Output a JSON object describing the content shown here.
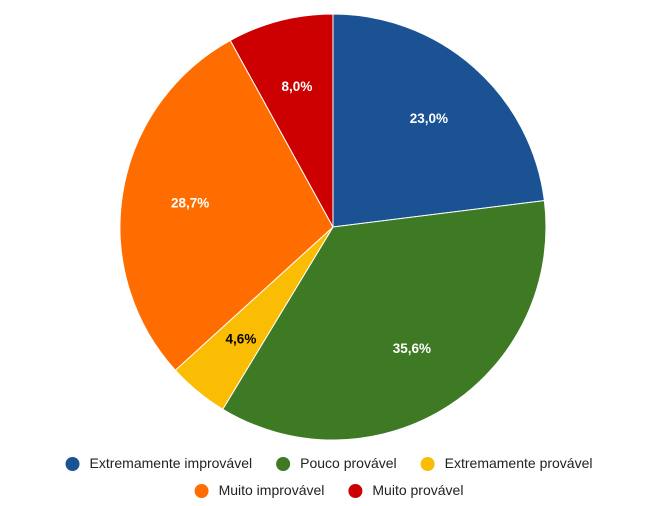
{
  "chart_data": {
    "type": "pie",
    "title": "",
    "slices": [
      {
        "label": "Extremamente improvável",
        "value": 23.0,
        "display": "23,0%",
        "color": "#1a5293",
        "label_color": "#ffffff"
      },
      {
        "label": "Pouco provável",
        "value": 35.6,
        "display": "35,6%",
        "color": "#3e7a24",
        "label_color": "#ffffff"
      },
      {
        "label": "Extremamente provável",
        "value": 4.6,
        "display": "4,6%",
        "color": "#fbbc04",
        "label_color": "#000000"
      },
      {
        "label": "Muito improvável",
        "value": 28.7,
        "display": "28,7%",
        "color": "#ff6d00",
        "label_color": "#ffffff"
      },
      {
        "label": "Muito provável",
        "value": 8.0,
        "display": "8,0%",
        "color": "#cc0000",
        "label_color": "#ffffff"
      }
    ],
    "start_angle": "12 o'clock",
    "direction": "clockwise",
    "legend_position": "bottom"
  }
}
